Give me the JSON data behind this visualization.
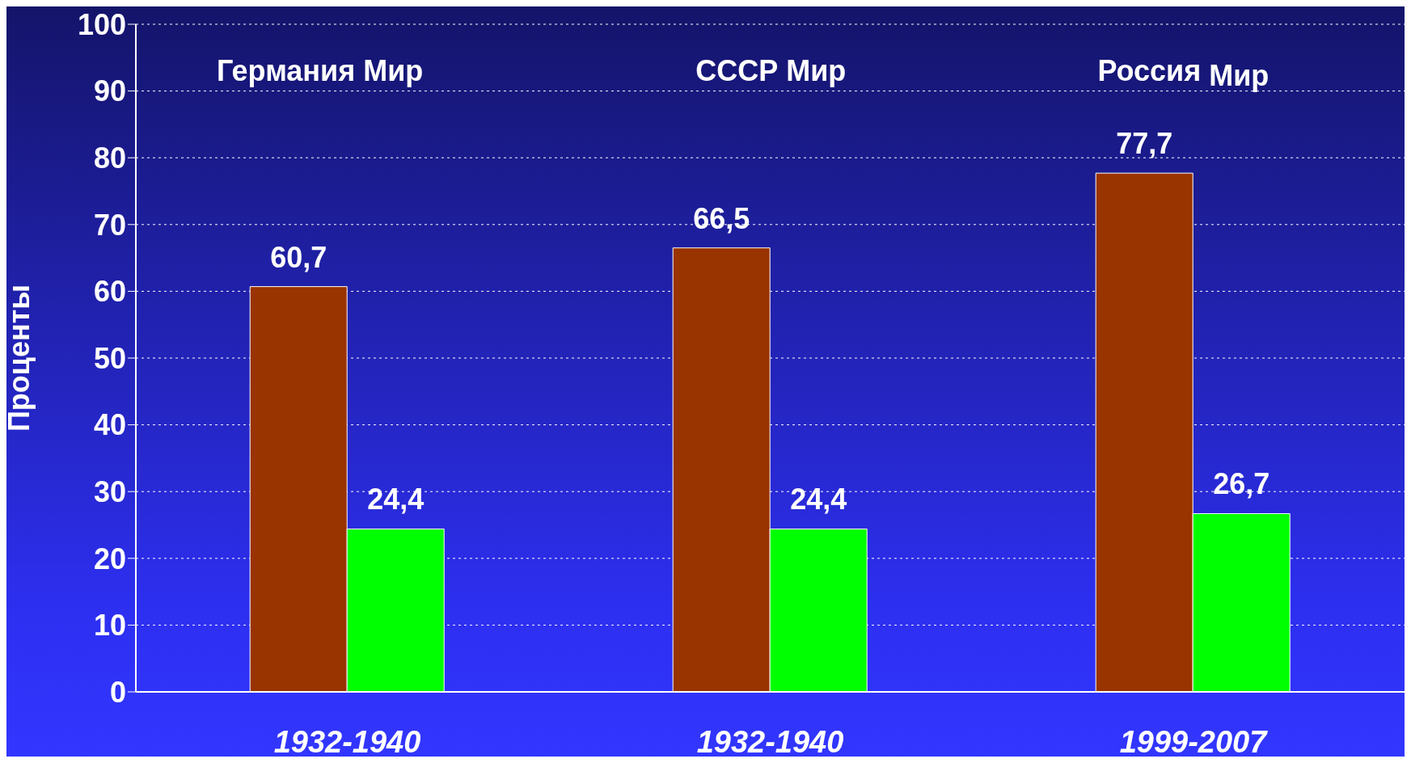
{
  "chart_data": {
    "type": "bar",
    "ylabel": "Проценты",
    "categories": [
      "1932-1940",
      "1932-1940",
      "1999-2007"
    ],
    "series": [
      {
        "color": "#993300",
        "values": [
          60.7,
          66.5,
          77.7
        ],
        "value_labels": [
          "60,7",
          "66,5",
          "77,7"
        ]
      },
      {
        "color": "#00ff00",
        "values": [
          24.4,
          24.4,
          26.7
        ],
        "value_labels": [
          "24,4",
          "24,4",
          "26,7"
        ]
      }
    ],
    "annotations": [
      "Германия",
      "Мир",
      "СССР",
      "Мир",
      "Россия",
      "Мир"
    ],
    "ylim": [
      0,
      100
    ],
    "yticks": [
      0,
      10,
      20,
      30,
      40,
      50,
      60,
      70,
      80,
      90,
      100
    ],
    "grid": "y",
    "legend": false
  }
}
